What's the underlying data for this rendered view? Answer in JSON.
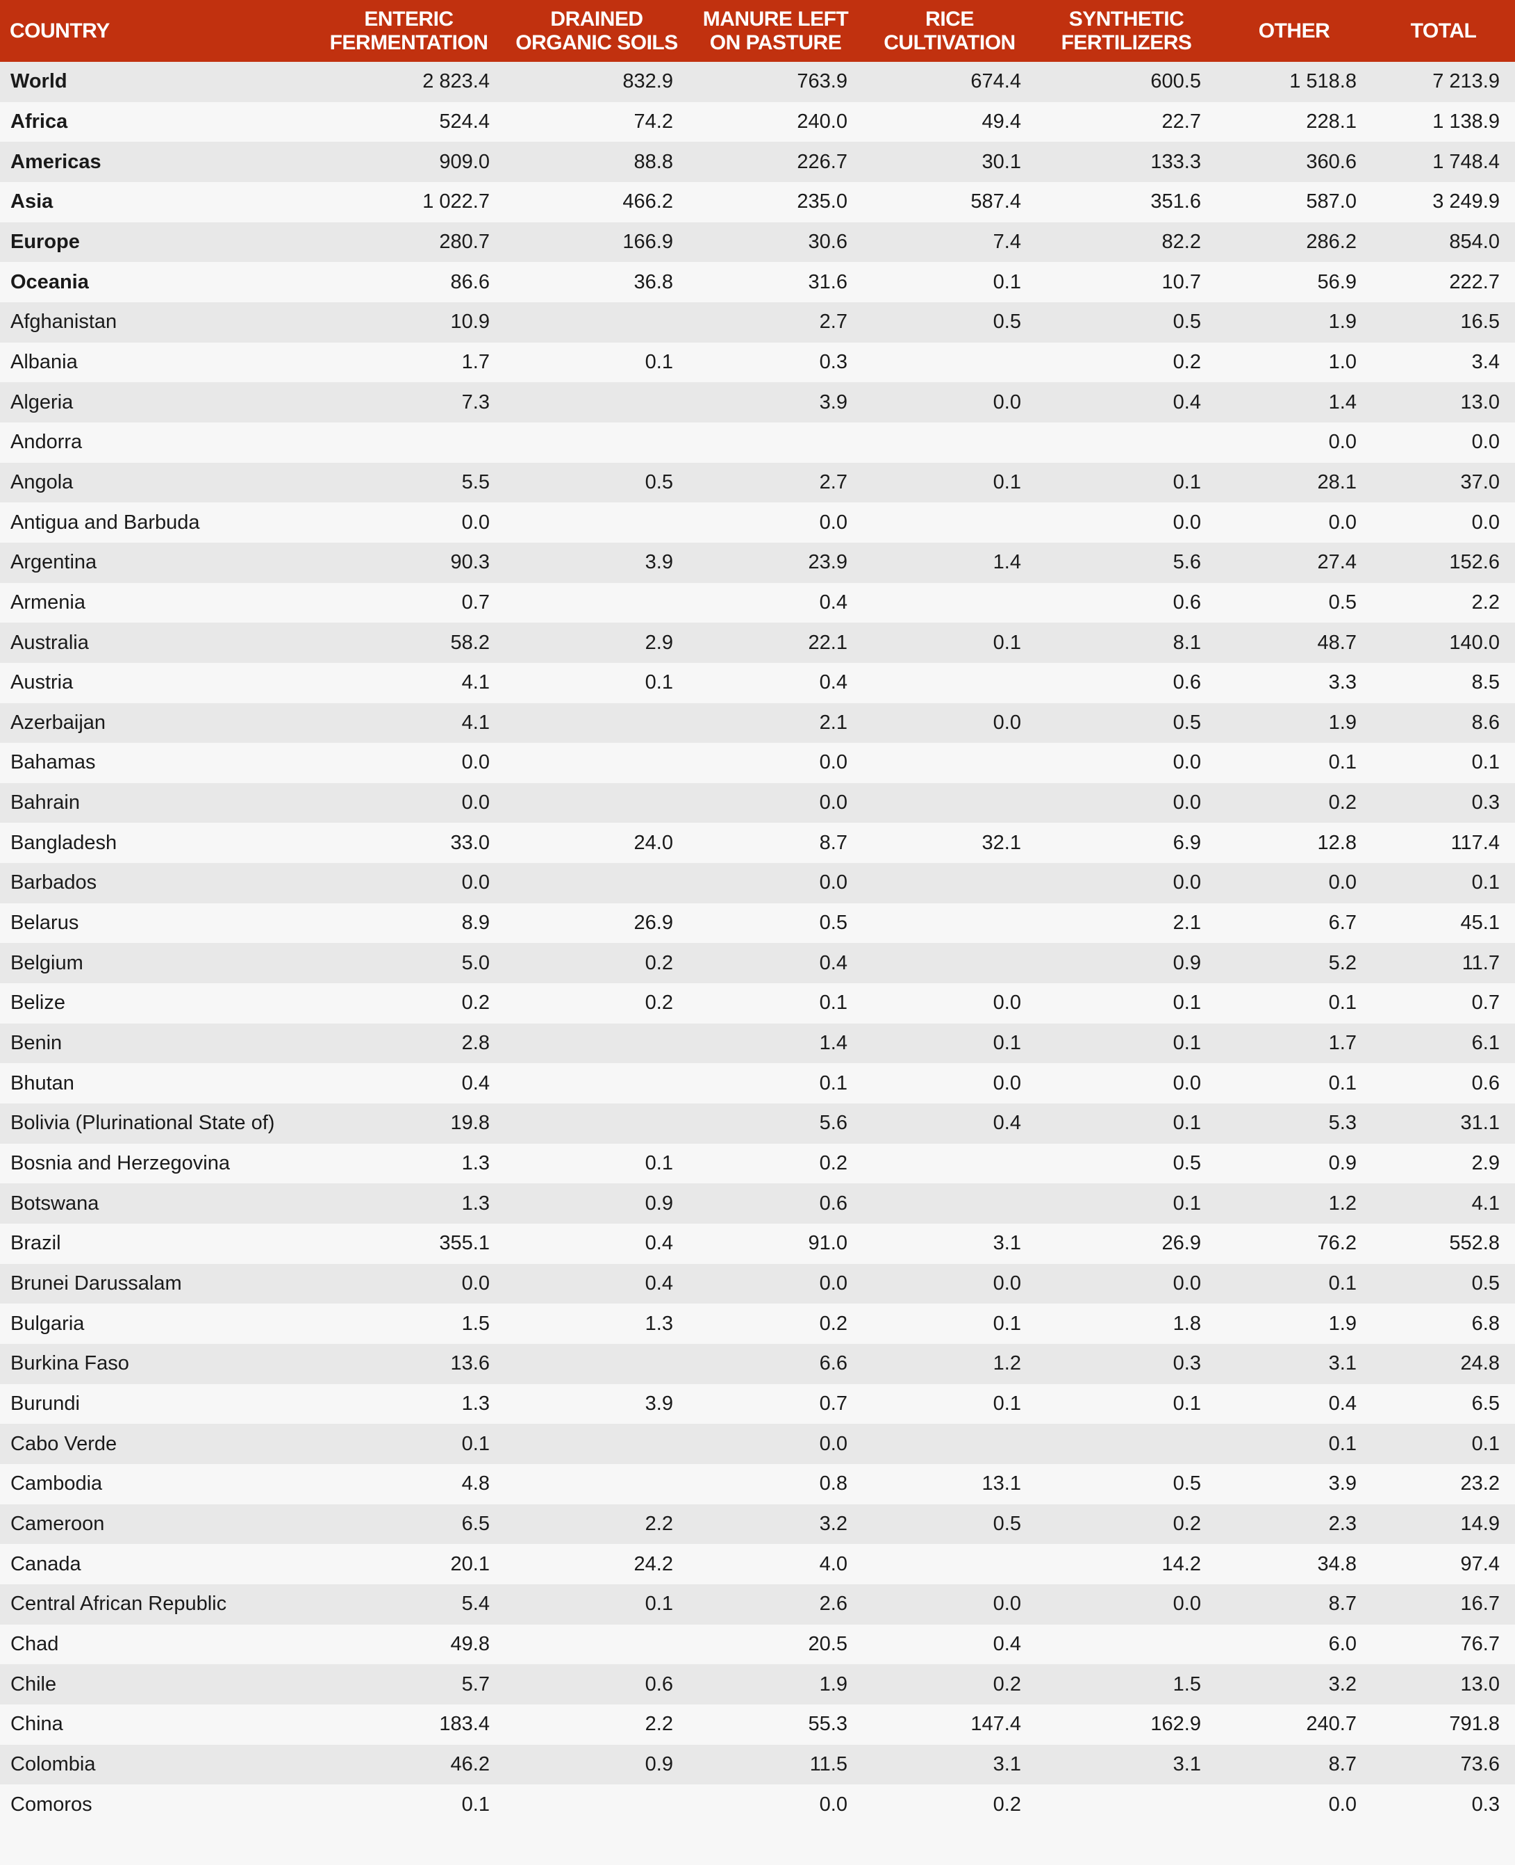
{
  "header": {
    "country": "COUNTRY",
    "columns": [
      "ENTERIC FERMENTATION",
      "DRAINED ORGANIC SOILS",
      "MANURE LEFT ON PASTURE",
      "RICE CULTIVATION",
      "SYNTHETIC FERTILIZERS",
      "OTHER",
      "TOTAL"
    ],
    "columns_lines": [
      [
        "ENTERIC",
        "FERMENTATION"
      ],
      [
        "DRAINED",
        "ORGANIC SOILS"
      ],
      [
        "MANURE LEFT",
        "ON PASTURE"
      ],
      [
        "RICE",
        "CULTIVATION"
      ],
      [
        "SYNTHETIC",
        "FERTILIZERS"
      ],
      [
        "OTHER"
      ],
      [
        "TOTAL"
      ]
    ]
  },
  "colors": {
    "header_bg": "#c1310f",
    "row_alt": "#e8e8e8",
    "row": "#f7f7f7"
  },
  "rows": [
    {
      "name": "World",
      "aggregate": true,
      "values": [
        "2 823.4",
        "832.9",
        "763.9",
        "674.4",
        "600.5",
        "1 518.8",
        "7 213.9"
      ]
    },
    {
      "name": "Africa",
      "aggregate": true,
      "values": [
        "524.4",
        "74.2",
        "240.0",
        "49.4",
        "22.7",
        "228.1",
        "1 138.9"
      ]
    },
    {
      "name": "Americas",
      "aggregate": true,
      "values": [
        "909.0",
        "88.8",
        "226.7",
        "30.1",
        "133.3",
        "360.6",
        "1 748.4"
      ]
    },
    {
      "name": "Asia",
      "aggregate": true,
      "values": [
        "1 022.7",
        "466.2",
        "235.0",
        "587.4",
        "351.6",
        "587.0",
        "3 249.9"
      ]
    },
    {
      "name": "Europe",
      "aggregate": true,
      "values": [
        "280.7",
        "166.9",
        "30.6",
        "7.4",
        "82.2",
        "286.2",
        "854.0"
      ]
    },
    {
      "name": "Oceania",
      "aggregate": true,
      "values": [
        "86.6",
        "36.8",
        "31.6",
        "0.1",
        "10.7",
        "56.9",
        "222.7"
      ]
    },
    {
      "name": "Afghanistan",
      "values": [
        "10.9",
        "",
        "2.7",
        "0.5",
        "0.5",
        "1.9",
        "16.5"
      ]
    },
    {
      "name": "Albania",
      "values": [
        "1.7",
        "0.1",
        "0.3",
        "",
        "0.2",
        "1.0",
        "3.4"
      ]
    },
    {
      "name": "Algeria",
      "values": [
        "7.3",
        "",
        "3.9",
        "0.0",
        "0.4",
        "1.4",
        "13.0"
      ]
    },
    {
      "name": "Andorra",
      "values": [
        "",
        "",
        "",
        "",
        "",
        "0.0",
        "0.0"
      ]
    },
    {
      "name": "Angola",
      "values": [
        "5.5",
        "0.5",
        "2.7",
        "0.1",
        "0.1",
        "28.1",
        "37.0"
      ]
    },
    {
      "name": "Antigua and Barbuda",
      "values": [
        "0.0",
        "",
        "0.0",
        "",
        "0.0",
        "0.0",
        "0.0"
      ]
    },
    {
      "name": "Argentina",
      "values": [
        "90.3",
        "3.9",
        "23.9",
        "1.4",
        "5.6",
        "27.4",
        "152.6"
      ]
    },
    {
      "name": "Armenia",
      "values": [
        "0.7",
        "",
        "0.4",
        "",
        "0.6",
        "0.5",
        "2.2"
      ]
    },
    {
      "name": "Australia",
      "values": [
        "58.2",
        "2.9",
        "22.1",
        "0.1",
        "8.1",
        "48.7",
        "140.0"
      ]
    },
    {
      "name": "Austria",
      "values": [
        "4.1",
        "0.1",
        "0.4",
        "",
        "0.6",
        "3.3",
        "8.5"
      ]
    },
    {
      "name": "Azerbaijan",
      "values": [
        "4.1",
        "",
        "2.1",
        "0.0",
        "0.5",
        "1.9",
        "8.6"
      ]
    },
    {
      "name": "Bahamas",
      "values": [
        "0.0",
        "",
        "0.0",
        "",
        "0.0",
        "0.1",
        "0.1"
      ]
    },
    {
      "name": "Bahrain",
      "values": [
        "0.0",
        "",
        "0.0",
        "",
        "0.0",
        "0.2",
        "0.3"
      ]
    },
    {
      "name": "Bangladesh",
      "values": [
        "33.0",
        "24.0",
        "8.7",
        "32.1",
        "6.9",
        "12.8",
        "117.4"
      ]
    },
    {
      "name": "Barbados",
      "values": [
        "0.0",
        "",
        "0.0",
        "",
        "0.0",
        "0.0",
        "0.1"
      ]
    },
    {
      "name": "Belarus",
      "values": [
        "8.9",
        "26.9",
        "0.5",
        "",
        "2.1",
        "6.7",
        "45.1"
      ]
    },
    {
      "name": "Belgium",
      "values": [
        "5.0",
        "0.2",
        "0.4",
        "",
        "0.9",
        "5.2",
        "11.7"
      ]
    },
    {
      "name": "Belize",
      "values": [
        "0.2",
        "0.2",
        "0.1",
        "0.0",
        "0.1",
        "0.1",
        "0.7"
      ]
    },
    {
      "name": "Benin",
      "values": [
        "2.8",
        "",
        "1.4",
        "0.1",
        "0.1",
        "1.7",
        "6.1"
      ]
    },
    {
      "name": "Bhutan",
      "values": [
        "0.4",
        "",
        "0.1",
        "0.0",
        "0.0",
        "0.1",
        "0.6"
      ]
    },
    {
      "name": "Bolivia (Plurinational State of)",
      "values": [
        "19.8",
        "",
        "5.6",
        "0.4",
        "0.1",
        "5.3",
        "31.1"
      ]
    },
    {
      "name": "Bosnia and Herzegovina",
      "values": [
        "1.3",
        "0.1",
        "0.2",
        "",
        "0.5",
        "0.9",
        "2.9"
      ]
    },
    {
      "name": "Botswana",
      "values": [
        "1.3",
        "0.9",
        "0.6",
        "",
        "0.1",
        "1.2",
        "4.1"
      ]
    },
    {
      "name": "Brazil",
      "values": [
        "355.1",
        "0.4",
        "91.0",
        "3.1",
        "26.9",
        "76.2",
        "552.8"
      ]
    },
    {
      "name": "Brunei Darussalam",
      "values": [
        "0.0",
        "0.4",
        "0.0",
        "0.0",
        "0.0",
        "0.1",
        "0.5"
      ]
    },
    {
      "name": "Bulgaria",
      "values": [
        "1.5",
        "1.3",
        "0.2",
        "0.1",
        "1.8",
        "1.9",
        "6.8"
      ]
    },
    {
      "name": "Burkina Faso",
      "values": [
        "13.6",
        "",
        "6.6",
        "1.2",
        "0.3",
        "3.1",
        "24.8"
      ]
    },
    {
      "name": "Burundi",
      "values": [
        "1.3",
        "3.9",
        "0.7",
        "0.1",
        "0.1",
        "0.4",
        "6.5"
      ]
    },
    {
      "name": "Cabo Verde",
      "values": [
        "0.1",
        "",
        "0.0",
        "",
        "",
        "0.1",
        "0.1"
      ]
    },
    {
      "name": "Cambodia",
      "values": [
        "4.8",
        "",
        "0.8",
        "13.1",
        "0.5",
        "3.9",
        "23.2"
      ]
    },
    {
      "name": "Cameroon",
      "values": [
        "6.5",
        "2.2",
        "3.2",
        "0.5",
        "0.2",
        "2.3",
        "14.9"
      ]
    },
    {
      "name": "Canada",
      "values": [
        "20.1",
        "24.2",
        "4.0",
        "",
        "14.2",
        "34.8",
        "97.4"
      ]
    },
    {
      "name": "Central African Republic",
      "values": [
        "5.4",
        "0.1",
        "2.6",
        "0.0",
        "0.0",
        "8.7",
        "16.7"
      ]
    },
    {
      "name": "Chad",
      "values": [
        "49.8",
        "",
        "20.5",
        "0.4",
        "",
        "6.0",
        "76.7"
      ]
    },
    {
      "name": "Chile",
      "values": [
        "5.7",
        "0.6",
        "1.9",
        "0.2",
        "1.5",
        "3.2",
        "13.0"
      ]
    },
    {
      "name": "China",
      "values": [
        "183.4",
        "2.2",
        "55.3",
        "147.4",
        "162.9",
        "240.7",
        "791.8"
      ]
    },
    {
      "name": "Colombia",
      "values": [
        "46.2",
        "0.9",
        "11.5",
        "3.1",
        "3.1",
        "8.7",
        "73.6"
      ]
    },
    {
      "name": "Comoros",
      "values": [
        "0.1",
        "",
        "0.0",
        "0.2",
        "",
        "0.0",
        "0.3"
      ]
    }
  ]
}
